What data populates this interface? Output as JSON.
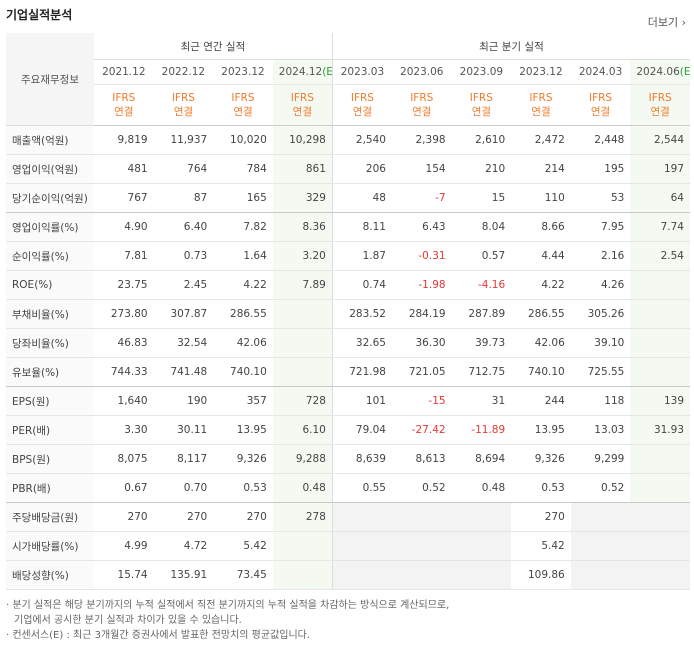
{
  "header": {
    "title": "기업실적분석",
    "more": "더보기"
  },
  "table": {
    "corner": "주요재무정보",
    "groups": [
      "최근 연간 실적",
      "최근 분기 실적"
    ],
    "periods": [
      {
        "label": "2021.12"
      },
      {
        "label": "2022.12"
      },
      {
        "label": "2023.12"
      },
      {
        "label": "2024.12",
        "estimate": "(E)"
      },
      {
        "label": "2023.03"
      },
      {
        "label": "2023.06"
      },
      {
        "label": "2023.09"
      },
      {
        "label": "2023.12"
      },
      {
        "label": "2024.03"
      },
      {
        "label": "2024.06",
        "estimate": "(E)"
      }
    ],
    "standard": [
      "IFRS",
      "연결"
    ],
    "rows": [
      {
        "label": "매출액(억원)",
        "values": [
          "9,819",
          "11,937",
          "10,020",
          "10,298",
          "2,540",
          "2,398",
          "2,610",
          "2,472",
          "2,448",
          "2,544"
        ]
      },
      {
        "label": "영업이익(억원)",
        "values": [
          "481",
          "764",
          "784",
          "861",
          "206",
          "154",
          "210",
          "214",
          "195",
          "197"
        ]
      },
      {
        "label": "당기순이익(억원)",
        "values": [
          "767",
          "87",
          "165",
          "329",
          "48",
          "-7",
          "15",
          "110",
          "53",
          "64"
        ]
      },
      {
        "label": "영업이익률(%)",
        "values": [
          "4.90",
          "6.40",
          "7.82",
          "8.36",
          "8.11",
          "6.43",
          "8.04",
          "8.66",
          "7.95",
          "7.74"
        ]
      },
      {
        "label": "순이익률(%)",
        "values": [
          "7.81",
          "0.73",
          "1.64",
          "3.20",
          "1.87",
          "-0.31",
          "0.57",
          "4.44",
          "2.16",
          "2.54"
        ]
      },
      {
        "label": "ROE(%)",
        "values": [
          "23.75",
          "2.45",
          "4.22",
          "7.89",
          "0.74",
          "-1.98",
          "-4.16",
          "4.22",
          "4.26",
          null
        ]
      },
      {
        "label": "부채비율(%)",
        "values": [
          "273.80",
          "307.87",
          "286.55",
          null,
          "283.52",
          "284.19",
          "287.89",
          "286.55",
          "305.26",
          null
        ]
      },
      {
        "label": "당좌비율(%)",
        "values": [
          "46.83",
          "32.54",
          "42.06",
          null,
          "32.65",
          "36.30",
          "39.73",
          "42.06",
          "39.10",
          null
        ]
      },
      {
        "label": "유보율(%)",
        "values": [
          "744.33",
          "741.48",
          "740.10",
          null,
          "721.98",
          "721.05",
          "712.75",
          "740.10",
          "725.55",
          null
        ]
      },
      {
        "label": "EPS(원)",
        "values": [
          "1,640",
          "190",
          "357",
          "728",
          "101",
          "-15",
          "31",
          "244",
          "118",
          "139"
        ]
      },
      {
        "label": "PER(배)",
        "values": [
          "3.30",
          "30.11",
          "13.95",
          "6.10",
          "79.04",
          "-27.42",
          "-11.89",
          "13.95",
          "13.03",
          "31.93"
        ]
      },
      {
        "label": "BPS(원)",
        "values": [
          "8,075",
          "8,117",
          "9,326",
          "9,288",
          "8,639",
          "8,613",
          "8,694",
          "9,326",
          "9,299",
          null
        ]
      },
      {
        "label": "PBR(배)",
        "values": [
          "0.67",
          "0.70",
          "0.53",
          "0.48",
          "0.55",
          "0.52",
          "0.48",
          "0.53",
          "0.52",
          null
        ]
      },
      {
        "label": "주당배당금(원)",
        "values": [
          "270",
          "270",
          "270",
          "278",
          null,
          null,
          null,
          "270",
          null,
          null
        ]
      },
      {
        "label": "시가배당률(%)",
        "values": [
          "4.99",
          "4.72",
          "5.42",
          null,
          null,
          null,
          null,
          "5.42",
          null,
          null
        ]
      },
      {
        "label": "배당성향(%)",
        "values": [
          "15.74",
          "135.91",
          "73.45",
          null,
          null,
          null,
          null,
          "109.86",
          null,
          null
        ]
      }
    ]
  },
  "notes": [
    "분기 실적은 해당 분기까지의 누적 실적에서 직전 분기까지의 누적 실적을 차감하는 방식으로 계산되므로,",
    "기업에서 공시한 분기 실적과 차이가 있을 수 있습니다.",
    "컨센서스(E) : 최근 3개월간 증권사에서 발표한 전망치의 평균값입니다."
  ]
}
